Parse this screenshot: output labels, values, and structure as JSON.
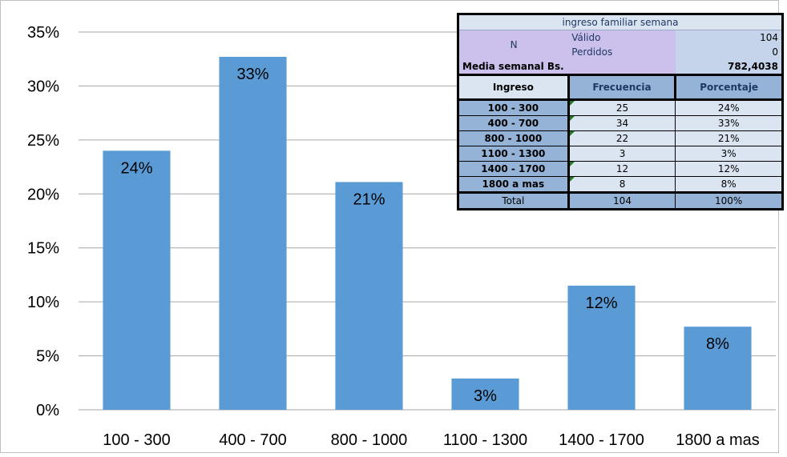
{
  "chart_data": {
    "type": "bar",
    "categories": [
      "100 - 300",
      "400 - 700",
      "800 - 1000",
      "1100 - 1300",
      "1400 - 1700",
      "1800 a mas"
    ],
    "values": [
      24.0,
      32.7,
      21.1,
      2.9,
      11.5,
      7.7
    ],
    "data_labels": [
      "24%",
      "33%",
      "21%",
      "3%",
      "12%",
      "8%"
    ],
    "ylim": [
      0,
      35
    ],
    "y_ticks": [
      "0%",
      "5%",
      "10%",
      "15%",
      "20%",
      "25%",
      "30%",
      "35%"
    ],
    "grid": true,
    "bar_color": "#5b9bd5",
    "grid_color": "#a6a6a6"
  },
  "table": {
    "title": "ingreso familiar semana",
    "n_label": "N",
    "valido_label": "Válido",
    "valido_value": "104",
    "perdidos_label": "Perdidos",
    "perdidos_value": "0",
    "media_label": "Media semanal Bs.",
    "media_value": "782,4038",
    "headers": [
      "Ingreso",
      "Frecuencia",
      "Porcentaje"
    ],
    "rows": [
      [
        "100 - 300",
        "25",
        "24%"
      ],
      [
        "400 - 700",
        "34",
        "33%"
      ],
      [
        "800 - 1000",
        "22",
        "21%"
      ],
      [
        "1100 - 1300",
        "3",
        "3%"
      ],
      [
        "1400 - 1700",
        "12",
        "12%"
      ],
      [
        "1800 a mas",
        "8",
        "8%"
      ]
    ],
    "total": [
      "Total",
      "104",
      "100%"
    ]
  }
}
